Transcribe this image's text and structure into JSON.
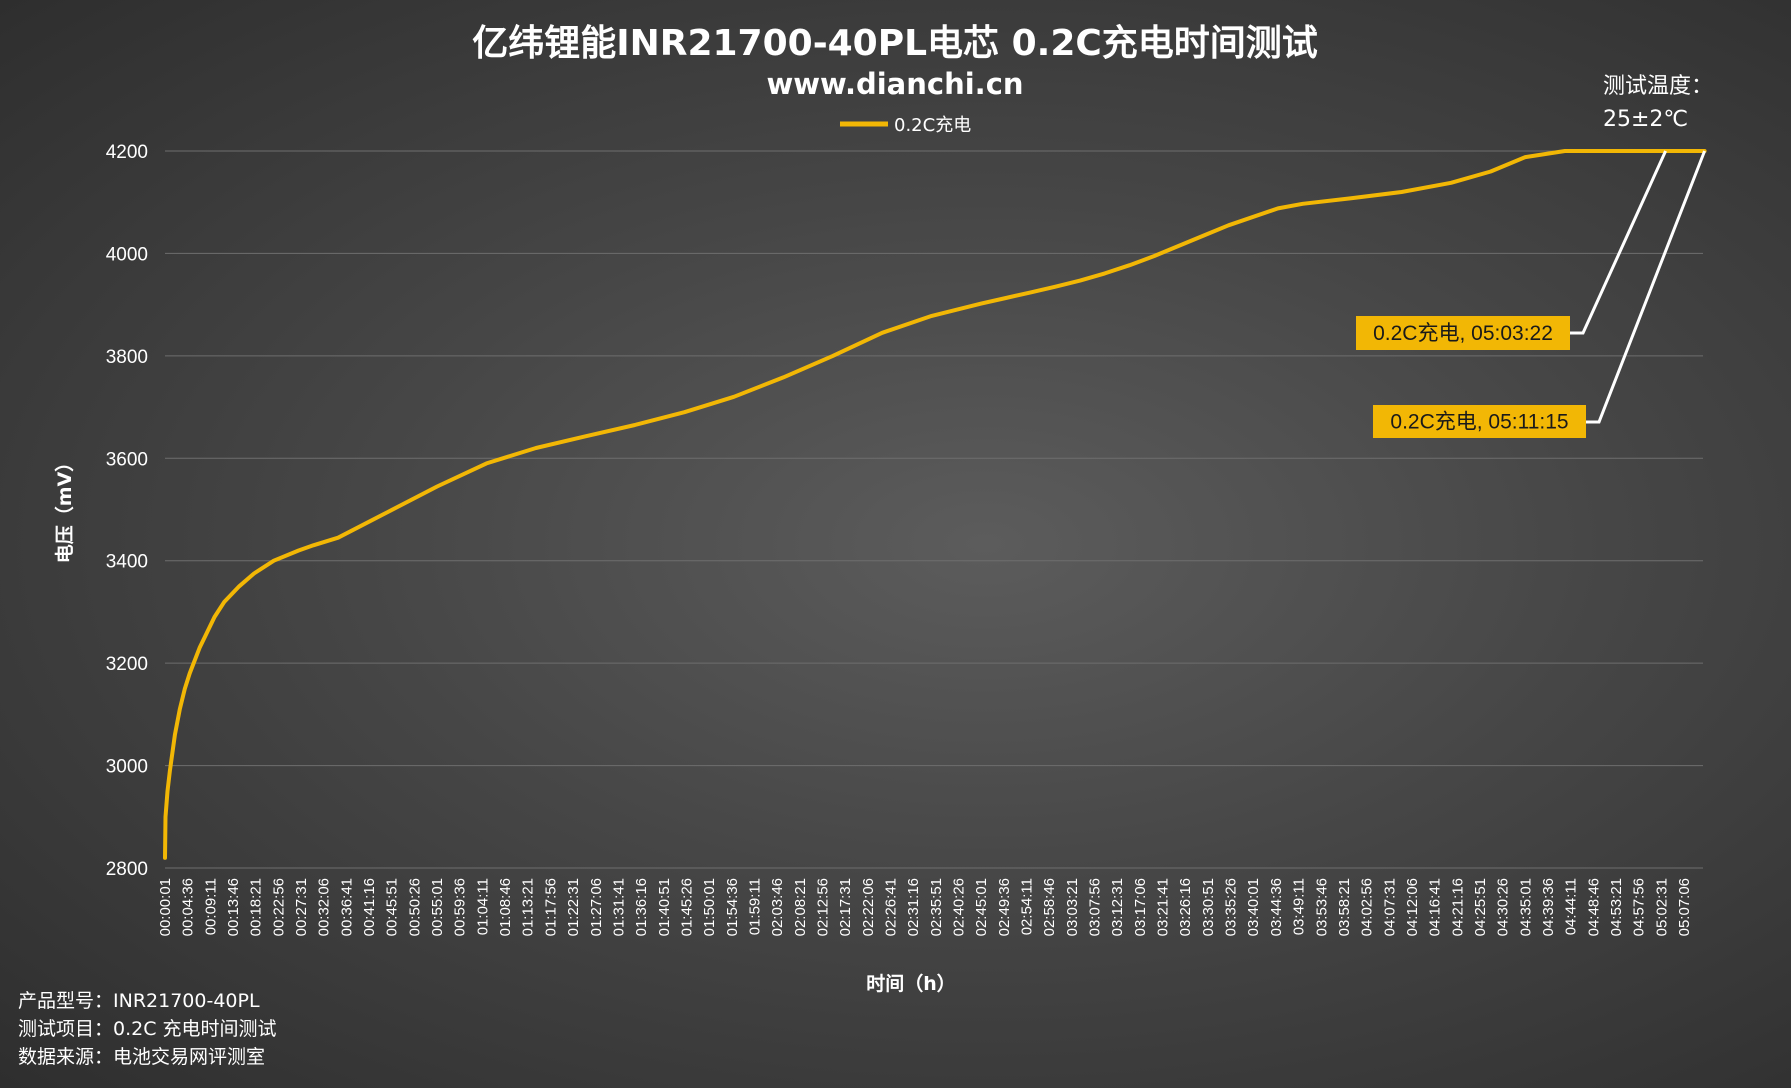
{
  "title": "亿纬锂能INR21700-40PL电芯 0.2C充电时间测试",
  "subtitle": "www.dianchi.cn",
  "test_temp": {
    "label": "测试温度：",
    "value": "25±2℃"
  },
  "footer": [
    "产品型号：INR21700-40PL",
    "测试项目：0.2C 充电时间测试",
    "数据来源：电池交易网评测室"
  ],
  "colors": {
    "series": "#f2b705",
    "annotation_bg": "#f2b705",
    "leader": "#ffffff"
  },
  "chart_data": {
    "type": "line",
    "title": "亿纬锂能INR21700-40PL电芯 0.2C充电时间测试",
    "xlabel": "时间（h）",
    "ylabel": "电压（mV）",
    "ylim": [
      2800,
      4200
    ],
    "yticks": [
      2800,
      3000,
      3200,
      3400,
      3600,
      3800,
      4000,
      4200
    ],
    "grid": true,
    "legend_position": "top-center",
    "x_tick_labels": [
      "00:00:01",
      "00:04:36",
      "00:09:11",
      "00:13:46",
      "00:18:21",
      "00:22:56",
      "00:27:31",
      "00:32:06",
      "00:36:41",
      "00:41:16",
      "00:45:51",
      "00:50:26",
      "00:55:01",
      "00:59:36",
      "01:04:11",
      "01:08:46",
      "01:13:21",
      "01:17:56",
      "01:22:31",
      "01:27:06",
      "01:31:41",
      "01:36:16",
      "01:40:51",
      "01:45:26",
      "01:50:01",
      "01:54:36",
      "01:59:11",
      "02:03:46",
      "02:08:21",
      "02:12:56",
      "02:17:31",
      "02:22:06",
      "02:26:41",
      "02:31:16",
      "02:35:51",
      "02:40:26",
      "02:45:01",
      "02:49:36",
      "02:54:11",
      "02:58:46",
      "03:03:21",
      "03:07:56",
      "03:12:31",
      "03:17:06",
      "03:21:41",
      "03:26:16",
      "03:30:51",
      "03:35:26",
      "03:40:01",
      "03:44:36",
      "03:49:11",
      "03:53:46",
      "03:58:21",
      "04:02:56",
      "04:07:31",
      "04:12:06",
      "04:16:41",
      "04:21:16",
      "04:25:51",
      "04:30:26",
      "04:35:01",
      "04:39:36",
      "04:44:11",
      "04:48:46",
      "04:53:21",
      "04:57:56",
      "05:02:31",
      "05:07:06"
    ],
    "series": [
      {
        "name": "0.2C充电",
        "x_minutes": [
          0,
          0.1,
          0.5,
          1,
          2,
          3,
          4,
          5,
          7,
          10,
          12,
          15,
          18,
          22,
          27,
          30,
          35,
          45,
          55,
          65,
          75,
          85,
          95,
          105,
          115,
          125,
          135,
          145,
          155,
          165,
          170,
          175,
          180,
          185,
          190,
          195,
          200,
          210,
          215,
          225,
          230,
          240,
          250,
          260,
          268,
          275,
          283,
          295,
          303.37,
          311.25
        ],
        "y_mV": [
          2820,
          2900,
          2950,
          2990,
          3060,
          3110,
          3150,
          3180,
          3230,
          3290,
          3320,
          3350,
          3375,
          3400,
          3420,
          3430,
          3445,
          3495,
          3545,
          3590,
          3620,
          3643,
          3665,
          3690,
          3720,
          3758,
          3800,
          3845,
          3878,
          3902,
          3913,
          3924,
          3935,
          3947,
          3961,
          3977,
          3995,
          4035,
          4055,
          4088,
          4097,
          4108,
          4120,
          4138,
          4160,
          4188,
          4200,
          4200,
          4200,
          4200
        ]
      }
    ],
    "annotations": [
      {
        "text": "0.2C充电, 05:03:22",
        "x_minutes": 303.37,
        "y_mV": 4200
      },
      {
        "text": "0.2C充电, 05:11:15",
        "x_minutes": 311.25,
        "y_mV": 4200
      }
    ]
  }
}
